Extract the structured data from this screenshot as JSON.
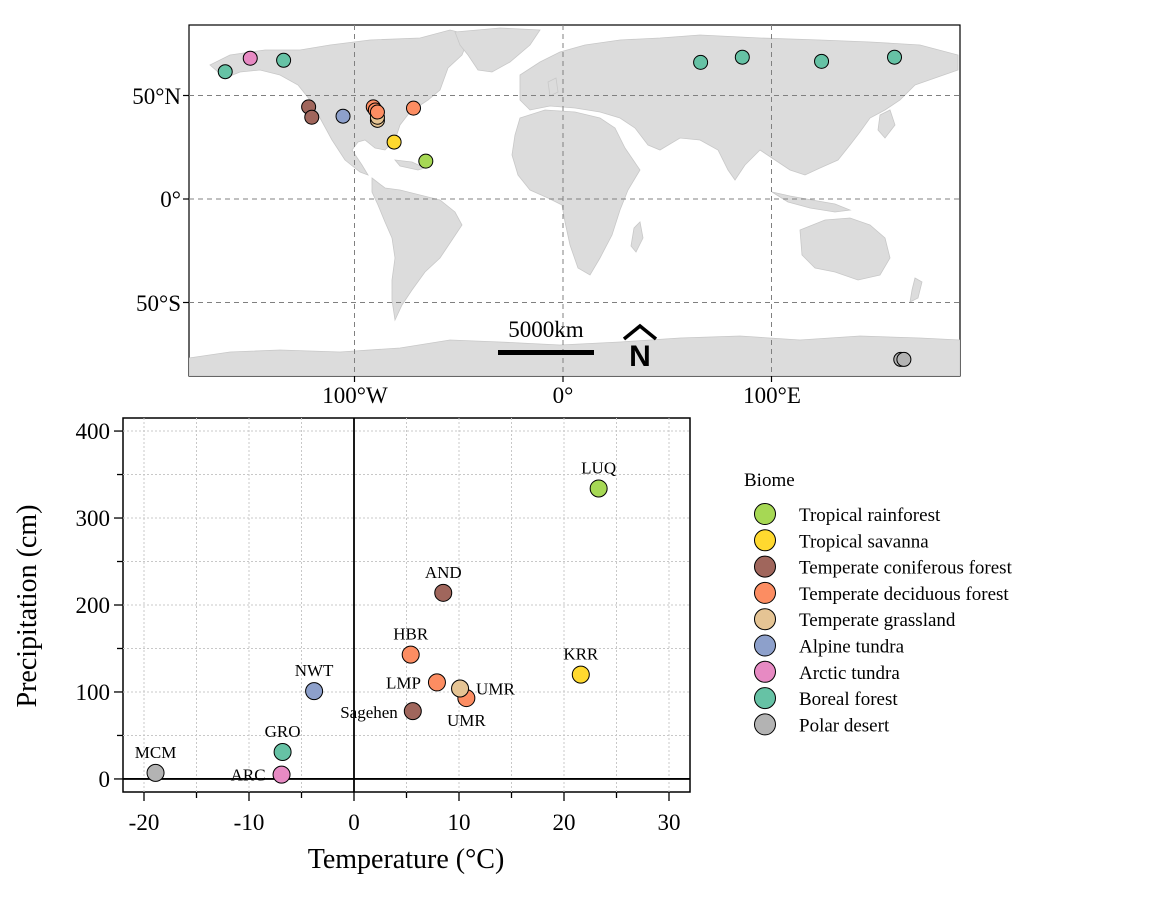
{
  "colors": {
    "Tropical rainforest": "#a6d854",
    "Tropical savanna": "#ffd92f",
    "Temperate coniferous forest": "#a0665c",
    "Temperate deciduous forest": "#fc8d62",
    "Temperate grassland": "#e5c494",
    "Alpine tundra": "#8da0cb",
    "Arctic tundra": "#e78ac3",
    "Boreal forest": "#66c2a5",
    "Polar desert": "#b3b3b3"
  },
  "map": {
    "lat_labels": [
      "50°N",
      "0°",
      "50°S"
    ],
    "lat_values": [
      50,
      0,
      -50
    ],
    "lon_labels": [
      "100°W",
      "0°",
      "100°E"
    ],
    "lon_values": [
      -100,
      0,
      100
    ],
    "scale_bar_label": "5000km",
    "north_arrow_label": "N",
    "sites": [
      {
        "lon": -162,
        "lat": 61.5,
        "biome": "Boreal forest"
      },
      {
        "lon": -150,
        "lat": 68,
        "biome": "Arctic tundra"
      },
      {
        "lon": -134,
        "lat": 67,
        "biome": "Boreal forest"
      },
      {
        "lon": -122,
        "lat": 44.5,
        "biome": "Temperate coniferous forest"
      },
      {
        "lon": -120.5,
        "lat": 39.5,
        "biome": "Temperate coniferous forest"
      },
      {
        "lon": -105.5,
        "lat": 40,
        "biome": "Alpine tundra"
      },
      {
        "lon": -91,
        "lat": 44.5,
        "biome": "Temperate deciduous forest"
      },
      {
        "lon": -90,
        "lat": 43,
        "biome": "Temperate deciduous forest"
      },
      {
        "lon": -89,
        "lat": 38,
        "biome": "Temperate grassland"
      },
      {
        "lon": -89,
        "lat": 39.5,
        "biome": "Temperate grassland"
      },
      {
        "lon": -89,
        "lat": 42,
        "biome": "Temperate deciduous forest"
      },
      {
        "lon": -71.7,
        "lat": 43.9,
        "biome": "Temperate deciduous forest"
      },
      {
        "lon": -81,
        "lat": 27.5,
        "biome": "Tropical savanna"
      },
      {
        "lon": -65.8,
        "lat": 18.3,
        "biome": "Tropical rainforest"
      },
      {
        "lon": 66,
        "lat": 66,
        "biome": "Boreal forest"
      },
      {
        "lon": 86,
        "lat": 68.5,
        "biome": "Boreal forest"
      },
      {
        "lon": 124,
        "lat": 66.5,
        "biome": "Boreal forest"
      },
      {
        "lon": 159,
        "lat": 68.5,
        "biome": "Boreal forest"
      },
      {
        "lon": 162,
        "lat": -77.5,
        "biome": "Polar desert"
      },
      {
        "lon": 163.5,
        "lat": -77.5,
        "biome": "Polar desert"
      }
    ]
  },
  "chart_data": {
    "type": "scatter",
    "xlabel": "Temperature (°C)",
    "ylabel": "Precipitation (cm)",
    "xlim": [
      -22,
      32
    ],
    "ylim": [
      -15,
      415
    ],
    "xticks": [
      -20,
      -10,
      0,
      10,
      20,
      30
    ],
    "yticks": [
      0,
      100,
      200,
      300,
      400
    ],
    "grid": true,
    "legend_title": "Biome",
    "legend_position": "right",
    "points": [
      {
        "label": "LUQ",
        "x": 23.3,
        "y": 334,
        "biome": "Tropical rainforest"
      },
      {
        "label": "KRR",
        "x": 21.6,
        "y": 120,
        "biome": "Tropical savanna"
      },
      {
        "label": "AND",
        "x": 8.5,
        "y": 214,
        "biome": "Temperate coniferous forest"
      },
      {
        "label": "Sagehen",
        "x": 5.6,
        "y": 78,
        "biome": "Temperate coniferous forest"
      },
      {
        "label": "HBR",
        "x": 5.4,
        "y": 143,
        "biome": "Temperate deciduous forest"
      },
      {
        "label": "LMP",
        "x": 7.9,
        "y": 111,
        "biome": "Temperate deciduous forest"
      },
      {
        "label": "UMR",
        "x": 10.7,
        "y": 93,
        "biome": "Temperate deciduous forest"
      },
      {
        "label": "UMR",
        "x": 10.1,
        "y": 104,
        "biome": "Temperate grassland"
      },
      {
        "label": "NWT",
        "x": -3.8,
        "y": 101,
        "biome": "Alpine tundra"
      },
      {
        "label": "ARC",
        "x": -6.9,
        "y": 5,
        "biome": "Arctic tundra"
      },
      {
        "label": "GRO",
        "x": -6.8,
        "y": 31,
        "biome": "Boreal forest"
      },
      {
        "label": "MCM",
        "x": -18.9,
        "y": 7,
        "biome": "Polar desert"
      }
    ],
    "legend": [
      "Tropical rainforest",
      "Tropical savanna",
      "Temperate coniferous forest",
      "Temperate deciduous forest",
      "Temperate grassland",
      "Alpine tundra",
      "Arctic tundra",
      "Boreal forest",
      "Polar desert"
    ]
  }
}
